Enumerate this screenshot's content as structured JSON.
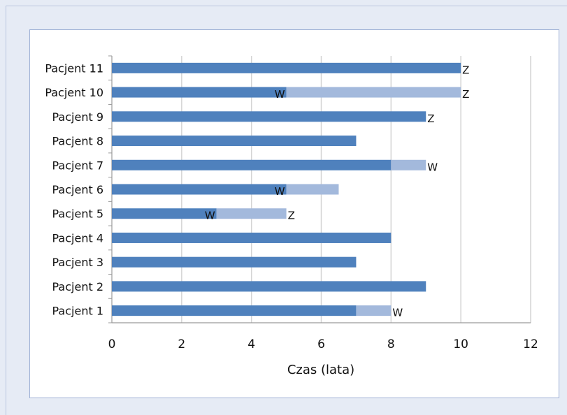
{
  "chart_data": {
    "type": "bar",
    "orientation": "horizontal",
    "stacked": true,
    "title": "",
    "xlabel": "Czas (lata)",
    "ylabel": "",
    "xlim": [
      0,
      12
    ],
    "x_ticks": [
      0,
      2,
      4,
      6,
      8,
      10,
      12
    ],
    "grid": "vertical",
    "legend": "none",
    "categories": [
      "Pacjent 1",
      "Pacjent 2",
      "Pacjent 3",
      "Pacjent 4",
      "Pacjent 5",
      "Pacjent 6",
      "Pacjent 7",
      "Pacjent 8",
      "Pacjent 9",
      "Pacjent 10",
      "Pacjent 11"
    ],
    "series": [
      {
        "values": [
          7,
          9,
          7,
          8,
          3,
          5,
          8,
          7,
          9,
          5,
          10
        ],
        "color": "#4f81bd"
      },
      {
        "values": [
          1,
          0,
          0,
          0,
          2,
          1.5,
          1,
          0,
          0,
          5,
          0
        ],
        "color": "#a3b9dc"
      }
    ],
    "annotations": [
      {
        "category": "Pacjent 1",
        "x": 8,
        "text": "W"
      },
      {
        "category": "Pacjent 5",
        "x": 3,
        "text": "W"
      },
      {
        "category": "Pacjent 5",
        "x": 5,
        "text": "Z"
      },
      {
        "category": "Pacjent 6",
        "x": 5,
        "text": "W"
      },
      {
        "category": "Pacjent 7",
        "x": 9,
        "text": "W"
      },
      {
        "category": "Pacjent 9",
        "x": 9,
        "text": "Z"
      },
      {
        "category": "Pacjent 10",
        "x": 5,
        "text": "W"
      },
      {
        "category": "Pacjent 10",
        "x": 10,
        "text": "Z"
      },
      {
        "category": "Pacjent 11",
        "x": 10,
        "text": "Z"
      }
    ]
  }
}
